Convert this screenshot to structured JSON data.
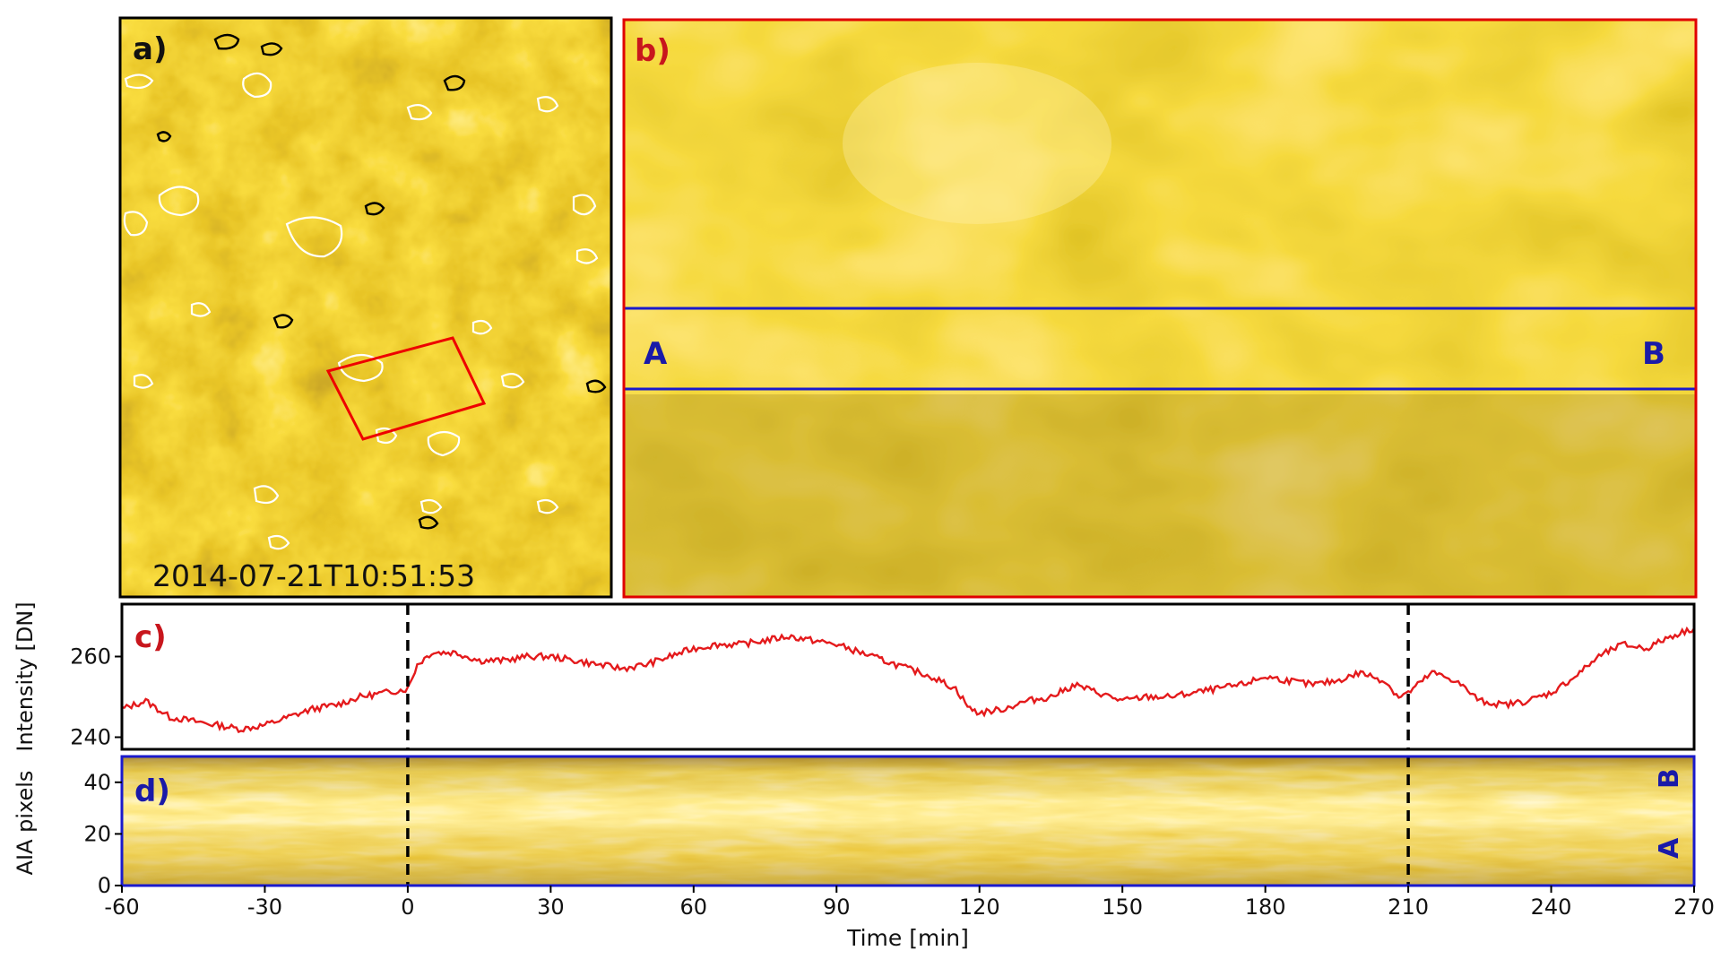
{
  "colors": {
    "panel_a_border": "#000000",
    "panel_b_border": "#e00000",
    "panel_c_border": "#000000",
    "panel_d_border": "#1a1acc",
    "curve": "#e41a1c",
    "slit": "#1a1acc",
    "roi_box": "#ee0000",
    "label_red": "#c8161d",
    "label_blue": "#1a1aa8",
    "sun_dark": "#5a3a05",
    "sun_mid": "#c88a00",
    "sun_bright": "#ffe27a"
  },
  "panels": {
    "a": {
      "label": "a)",
      "timestamp": "2014-07-21T10:51:53"
    },
    "b": {
      "label": "b)",
      "end_a": "A",
      "end_b": "B"
    },
    "c": {
      "label": "c)"
    },
    "d": {
      "label": "d)",
      "end_a": "A",
      "end_b": "B"
    }
  },
  "chart_data": [
    {
      "type": "line",
      "panel": "c",
      "ylabel": "Intensity [DN]",
      "xlim": [
        -60,
        270
      ],
      "ylim": [
        237,
        273
      ],
      "yticks": [
        240,
        260
      ],
      "vlines": [
        0,
        210
      ],
      "series": [
        {
          "x": [
            -60,
            -55,
            -50,
            -45,
            -40,
            -35,
            -30,
            -25,
            -20,
            -15,
            -10,
            -5,
            0,
            2,
            5,
            10,
            15,
            20,
            25,
            30,
            35,
            40,
            45,
            50,
            55,
            60,
            65,
            70,
            75,
            80,
            85,
            90,
            95,
            100,
            105,
            110,
            115,
            118,
            120,
            125,
            130,
            135,
            140,
            145,
            150,
            155,
            160,
            165,
            170,
            175,
            180,
            185,
            190,
            195,
            200,
            205,
            208,
            210,
            215,
            220,
            225,
            230,
            235,
            240,
            245,
            250,
            255,
            260,
            265,
            270
          ],
          "y": [
            247,
            249,
            245,
            244,
            243,
            242,
            243,
            245,
            247,
            248,
            250,
            251,
            252,
            258,
            261,
            261,
            259,
            259,
            260,
            260,
            259,
            258,
            257,
            258,
            260,
            262,
            263,
            263,
            264,
            265,
            264,
            263,
            261,
            259,
            257,
            255,
            252,
            247,
            246,
            247,
            249,
            250,
            253,
            251,
            249,
            250,
            250,
            251,
            252,
            253,
            255,
            254,
            253,
            254,
            256,
            254,
            250,
            251,
            256,
            254,
            249,
            248,
            249,
            251,
            255,
            260,
            263,
            262,
            265,
            267
          ]
        }
      ]
    },
    {
      "type": "heatmap",
      "panel": "d",
      "xlabel": "Time [min]",
      "ylabel": "AIA pixels",
      "xlim": [
        -60,
        270
      ],
      "ylim": [
        0,
        50
      ],
      "xticks": [
        -60,
        -30,
        0,
        30,
        60,
        90,
        120,
        150,
        180,
        210,
        240,
        270
      ],
      "yticks": [
        0,
        20,
        40
      ],
      "vlines": [
        0,
        210
      ]
    }
  ]
}
